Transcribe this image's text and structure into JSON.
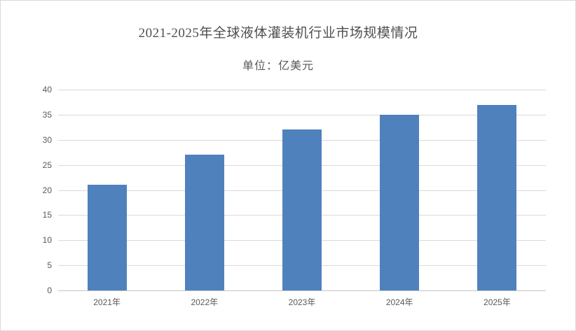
{
  "page": {
    "background": "#ffffff",
    "border_color": "#d9d9d9"
  },
  "chart_data": {
    "type": "bar",
    "title": "2021-2025年全球液体灌装机行业市场规模情况",
    "subtitle": "单位：亿美元",
    "categories": [
      "2021年",
      "2022年",
      "2023年",
      "2024年",
      "2025年"
    ],
    "values": [
      21,
      27,
      32,
      35,
      37
    ],
    "xlabel": "",
    "ylabel": "",
    "ylim": [
      0,
      40
    ],
    "yticks": [
      0,
      5,
      10,
      15,
      20,
      25,
      30,
      35,
      40
    ],
    "grid": "horizontal",
    "legend": "none",
    "bar_color": "#4f81bd",
    "gridline_color": "#d9d9d9",
    "axis_line_color": "#c3c3c3",
    "axis_text_color": "#595959",
    "title_color": "#4f4f4f"
  }
}
